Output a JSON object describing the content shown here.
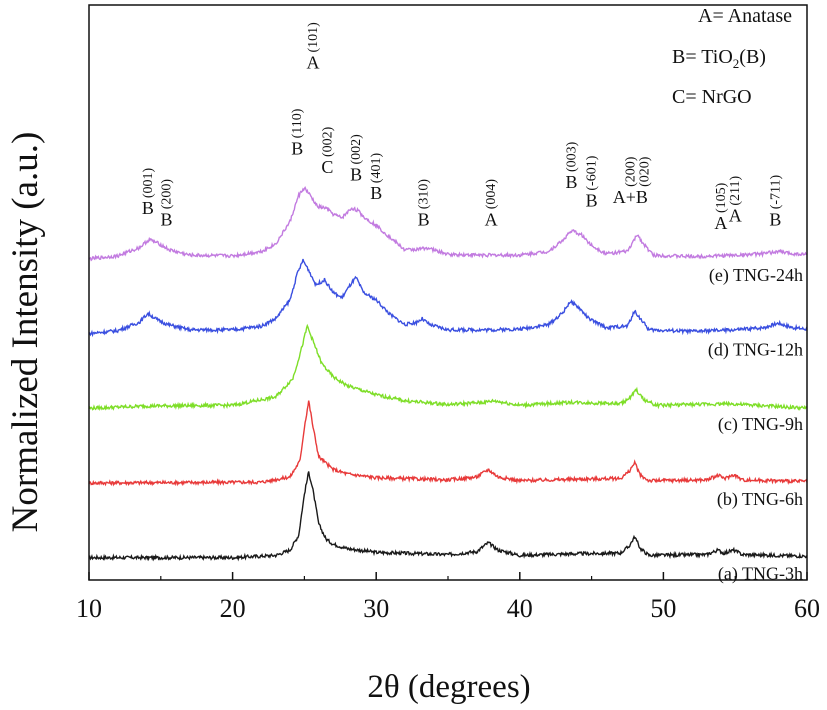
{
  "chart_data": {
    "type": "line",
    "xlabel": "2θ (degrees)",
    "ylabel": "Normalized Intensity (a.u.)",
    "xlim": [
      10,
      60
    ],
    "xticks": [
      10,
      20,
      30,
      40,
      50,
      60
    ],
    "grid": false,
    "legend_text": [
      "A= Anatase",
      "B= TiO",
      "2",
      "(B)",
      "C= NrGO"
    ],
    "baselines": [
      0.0,
      1.0,
      2.0,
      3.0,
      4.0
    ],
    "ylim": [
      -0.3,
      7.4
    ],
    "peak_labels": [
      {
        "letter": "B",
        "hkl": "(001)",
        "x": 14.1,
        "y": 4.6
      },
      {
        "letter": "B",
        "hkl": "(200)",
        "x": 15.4,
        "y": 4.45
      },
      {
        "letter": "B",
        "hkl": "(110)",
        "x": 24.5,
        "y": 5.4
      },
      {
        "letter": "A",
        "hkl": "(101)",
        "x": 25.6,
        "y": 6.55
      },
      {
        "letter": "C",
        "hkl": "(002)",
        "x": 26.6,
        "y": 5.15
      },
      {
        "letter": "B",
        "hkl": "(002)",
        "x": 28.6,
        "y": 5.05
      },
      {
        "letter": "B",
        "hkl": "(401)",
        "x": 30.0,
        "y": 4.8
      },
      {
        "letter": "B",
        "hkl": "(310)",
        "x": 33.3,
        "y": 4.45
      },
      {
        "letter": "A",
        "hkl": "(004)",
        "x": 38.0,
        "y": 4.45
      },
      {
        "letter": "B",
        "hkl": "(003)",
        "x": 43.6,
        "y": 4.95
      },
      {
        "letter": "B",
        "hkl": "(-601)",
        "x": 45.0,
        "y": 4.7
      },
      {
        "letter": "A+B",
        "hkl": "(200)",
        "x": 47.7,
        "y": 4.75
      },
      {
        "letter": "",
        "hkl": "(020)",
        "x": 48.7,
        "y": 4.75
      },
      {
        "letter": "A",
        "hkl": "(105)",
        "x": 54.0,
        "y": 4.4
      },
      {
        "letter": "A",
        "hkl": "(211)",
        "x": 55.0,
        "y": 4.5
      },
      {
        "letter": "B",
        "hkl": "(-711)",
        "x": 57.8,
        "y": 4.45
      }
    ],
    "series": [
      {
        "name": "(a) TNG-3h",
        "color": "#1a1a1a",
        "points": [
          [
            10,
            0.0
          ],
          [
            20,
            0.0
          ],
          [
            23,
            0.03
          ],
          [
            24,
            0.1
          ],
          [
            24.6,
            0.3
          ],
          [
            25,
            0.85
          ],
          [
            25.3,
            1.15
          ],
          [
            25.6,
            0.9
          ],
          [
            26,
            0.45
          ],
          [
            26.5,
            0.25
          ],
          [
            27,
            0.18
          ],
          [
            28,
            0.12
          ],
          [
            30,
            0.07
          ],
          [
            35,
            0.04
          ],
          [
            37,
            0.08
          ],
          [
            37.8,
            0.2
          ],
          [
            38.5,
            0.1
          ],
          [
            40,
            0.03
          ],
          [
            43.5,
            0.05
          ],
          [
            47,
            0.06
          ],
          [
            47.6,
            0.15
          ],
          [
            48.0,
            0.28
          ],
          [
            48.4,
            0.12
          ],
          [
            49,
            0.03
          ],
          [
            53,
            0.04
          ],
          [
            53.8,
            0.1
          ],
          [
            54.2,
            0.06
          ],
          [
            54.9,
            0.1
          ],
          [
            55.5,
            0.04
          ],
          [
            60,
            0.02
          ]
        ]
      },
      {
        "name": "(b) TNG-6h",
        "color": "#e83a3a",
        "points": [
          [
            10,
            1.0
          ],
          [
            22,
            1.01
          ],
          [
            24,
            1.08
          ],
          [
            24.7,
            1.3
          ],
          [
            25.0,
            1.75
          ],
          [
            25.3,
            2.1
          ],
          [
            25.6,
            1.75
          ],
          [
            26,
            1.35
          ],
          [
            27,
            1.18
          ],
          [
            28,
            1.12
          ],
          [
            30,
            1.07
          ],
          [
            35,
            1.04
          ],
          [
            37,
            1.08
          ],
          [
            37.8,
            1.18
          ],
          [
            38.5,
            1.08
          ],
          [
            40,
            1.03
          ],
          [
            44,
            1.05
          ],
          [
            47,
            1.06
          ],
          [
            47.6,
            1.15
          ],
          [
            48.0,
            1.27
          ],
          [
            48.4,
            1.1
          ],
          [
            49,
            1.03
          ],
          [
            53,
            1.04
          ],
          [
            53.8,
            1.1
          ],
          [
            54.3,
            1.06
          ],
          [
            54.9,
            1.11
          ],
          [
            55.5,
            1.04
          ],
          [
            60,
            1.02
          ]
        ]
      },
      {
        "name": "(c) TNG-9h",
        "color": "#7ede28",
        "points": [
          [
            10,
            2.0
          ],
          [
            14,
            2.03
          ],
          [
            20,
            2.04
          ],
          [
            23,
            2.15
          ],
          [
            24.2,
            2.4
          ],
          [
            24.8,
            2.8
          ],
          [
            25.2,
            3.1
          ],
          [
            25.6,
            2.9
          ],
          [
            26.2,
            2.6
          ],
          [
            27,
            2.42
          ],
          [
            28,
            2.3
          ],
          [
            30,
            2.18
          ],
          [
            32,
            2.1
          ],
          [
            35,
            2.05
          ],
          [
            37.5,
            2.08
          ],
          [
            38.2,
            2.1
          ],
          [
            40,
            2.04
          ],
          [
            43.6,
            2.08
          ],
          [
            47,
            2.06
          ],
          [
            47.7,
            2.14
          ],
          [
            48.1,
            2.25
          ],
          [
            48.6,
            2.12
          ],
          [
            49.5,
            2.04
          ],
          [
            54.5,
            2.06
          ],
          [
            60,
            2.0
          ]
        ]
      },
      {
        "name": "(d) TNG-12h",
        "color": "#3a4fe0",
        "points": [
          [
            10,
            3.0
          ],
          [
            12,
            3.04
          ],
          [
            13.5,
            3.15
          ],
          [
            14.1,
            3.27
          ],
          [
            14.8,
            3.18
          ],
          [
            15.5,
            3.12
          ],
          [
            17,
            3.05
          ],
          [
            20,
            3.05
          ],
          [
            22,
            3.1
          ],
          [
            23,
            3.2
          ],
          [
            24,
            3.45
          ],
          [
            24.5,
            3.8
          ],
          [
            24.9,
            3.98
          ],
          [
            25.3,
            3.85
          ],
          [
            25.8,
            3.65
          ],
          [
            26.4,
            3.72
          ],
          [
            27,
            3.55
          ],
          [
            27.6,
            3.48
          ],
          [
            28.3,
            3.68
          ],
          [
            28.6,
            3.75
          ],
          [
            29.1,
            3.55
          ],
          [
            30,
            3.45
          ],
          [
            31,
            3.25
          ],
          [
            32,
            3.12
          ],
          [
            32.8,
            3.15
          ],
          [
            33.2,
            3.2
          ],
          [
            33.7,
            3.12
          ],
          [
            35,
            3.05
          ],
          [
            38,
            3.05
          ],
          [
            40,
            3.06
          ],
          [
            42,
            3.12
          ],
          [
            43,
            3.28
          ],
          [
            43.5,
            3.43
          ],
          [
            44.1,
            3.35
          ],
          [
            44.8,
            3.2
          ],
          [
            46,
            3.08
          ],
          [
            47.5,
            3.1
          ],
          [
            48.0,
            3.3
          ],
          [
            48.4,
            3.2
          ],
          [
            49,
            3.05
          ],
          [
            52,
            3.03
          ],
          [
            55,
            3.05
          ],
          [
            57,
            3.08
          ],
          [
            58,
            3.14
          ],
          [
            59,
            3.08
          ],
          [
            60,
            3.06
          ]
        ]
      },
      {
        "name": "(e) TNG-24h",
        "color": "#c27be0",
        "points": [
          [
            10,
            4.0
          ],
          [
            12,
            4.04
          ],
          [
            13.5,
            4.15
          ],
          [
            14.2,
            4.26
          ],
          [
            14.9,
            4.2
          ],
          [
            15.6,
            4.12
          ],
          [
            17,
            4.05
          ],
          [
            20,
            4.04
          ],
          [
            22,
            4.1
          ],
          [
            23,
            4.2
          ],
          [
            24,
            4.5
          ],
          [
            24.6,
            4.85
          ],
          [
            25.0,
            4.95
          ],
          [
            25.4,
            4.85
          ],
          [
            25.9,
            4.7
          ],
          [
            26.5,
            4.68
          ],
          [
            27,
            4.6
          ],
          [
            27.6,
            4.55
          ],
          [
            28.3,
            4.68
          ],
          [
            28.7,
            4.65
          ],
          [
            29.2,
            4.55
          ],
          [
            30,
            4.45
          ],
          [
            31,
            4.28
          ],
          [
            32,
            4.12
          ],
          [
            33,
            4.13
          ],
          [
            33.5,
            4.15
          ],
          [
            34,
            4.12
          ],
          [
            35,
            4.06
          ],
          [
            38,
            4.05
          ],
          [
            40,
            4.05
          ],
          [
            42,
            4.1
          ],
          [
            43,
            4.25
          ],
          [
            43.6,
            4.38
          ],
          [
            44.3,
            4.32
          ],
          [
            45,
            4.18
          ],
          [
            46,
            4.07
          ],
          [
            47.5,
            4.1
          ],
          [
            48.2,
            4.33
          ],
          [
            48.6,
            4.2
          ],
          [
            49.3,
            4.05
          ],
          [
            52,
            4.03
          ],
          [
            55,
            4.05
          ],
          [
            57,
            4.07
          ],
          [
            58,
            4.1
          ],
          [
            59,
            4.07
          ],
          [
            60,
            4.06
          ]
        ]
      }
    ]
  }
}
